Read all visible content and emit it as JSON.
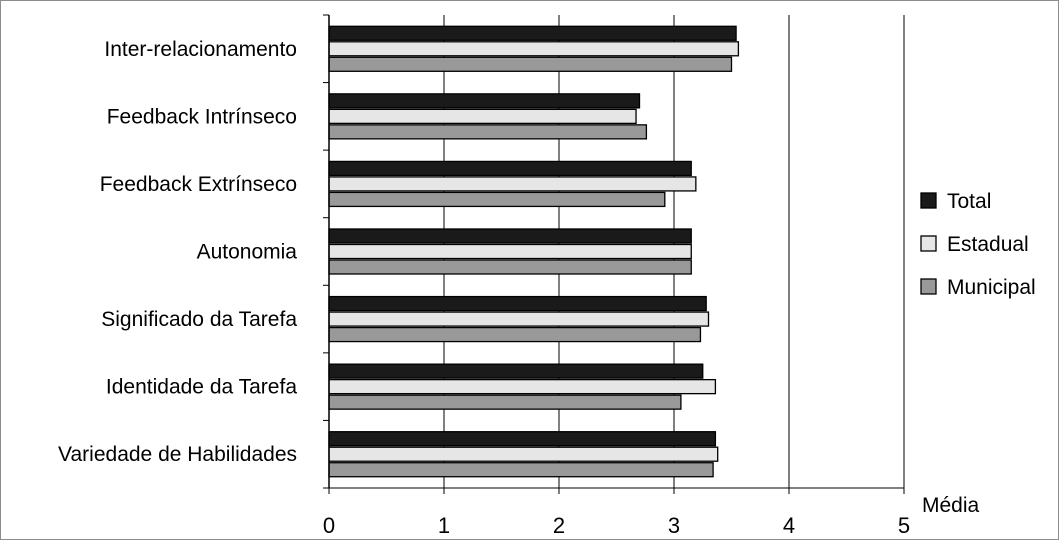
{
  "chart_data": {
    "type": "bar",
    "orientation": "horizontal",
    "categories": [
      "Inter-relacionamento",
      "Feedback Intrínseco",
      "Feedback Extrínseco",
      "Autonomia",
      "Significado da Tarefa",
      "Identidade da Tarefa",
      "Variedade de Habilidades"
    ],
    "series": [
      {
        "name": "Total",
        "color": "#1a1a1a",
        "values": [
          3.54,
          2.7,
          3.15,
          3.15,
          3.28,
          3.25,
          3.36
        ]
      },
      {
        "name": "Estadual",
        "color": "#e6e6e6",
        "values": [
          3.56,
          2.67,
          3.19,
          3.15,
          3.3,
          3.36,
          3.38
        ]
      },
      {
        "name": "Municipal",
        "color": "#999999",
        "values": [
          3.5,
          2.76,
          2.92,
          3.15,
          3.23,
          3.06,
          3.34
        ]
      }
    ],
    "xlabel": "Média",
    "xlim": [
      0,
      5
    ],
    "xticks": [
      "0",
      "1",
      "2",
      "3",
      "4",
      "5"
    ],
    "grid": true,
    "legend": "right"
  }
}
